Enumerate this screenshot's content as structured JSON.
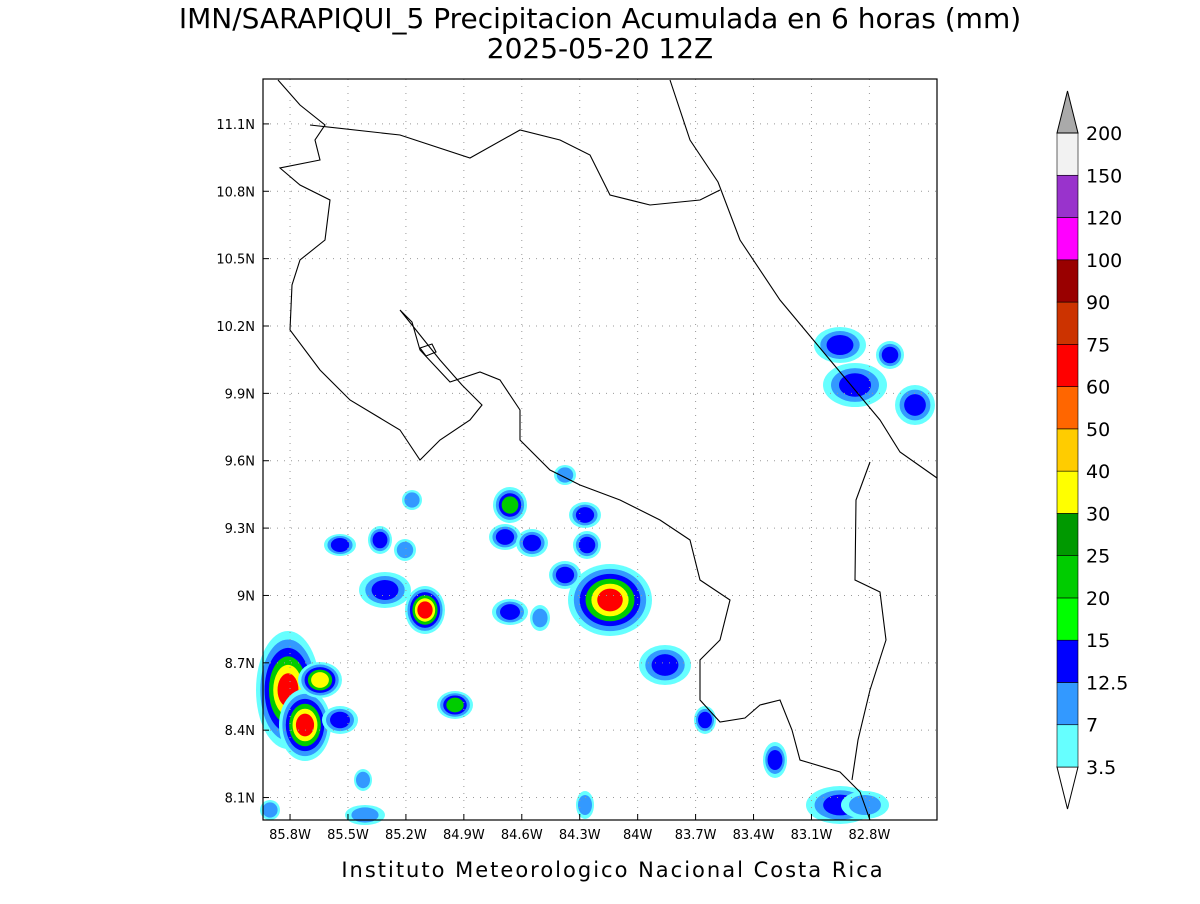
{
  "map": {
    "title": "IMN/SARAPIQUI_5 Precipitacion Acumulada en 6 horas (mm)",
    "subtitle": "2025-05-20 12Z",
    "footer": "Instituto Meteorologico Nacional Costa Rica",
    "xlim": [
      -85.94,
      -82.45
    ],
    "ylim": [
      8.0,
      11.3
    ],
    "xticks": [
      {
        "value": -85.8,
        "label": "85.8W"
      },
      {
        "value": -85.5,
        "label": "85.5W"
      },
      {
        "value": -85.2,
        "label": "85.2W"
      },
      {
        "value": -84.9,
        "label": "84.9W"
      },
      {
        "value": -84.6,
        "label": "84.6W"
      },
      {
        "value": -84.3,
        "label": "84.3W"
      },
      {
        "value": -84.0,
        "label": "84W"
      },
      {
        "value": -83.7,
        "label": "83.7W"
      },
      {
        "value": -83.4,
        "label": "83.4W"
      },
      {
        "value": -83.1,
        "label": "83.1W"
      },
      {
        "value": -82.8,
        "label": "82.8W"
      }
    ],
    "yticks": [
      {
        "value": 8.1,
        "label": "8.1N"
      },
      {
        "value": 8.4,
        "label": "8.4N"
      },
      {
        "value": 8.7,
        "label": "8.7N"
      },
      {
        "value": 9.0,
        "label": "9N"
      },
      {
        "value": 9.3,
        "label": "9.3N"
      },
      {
        "value": 9.6,
        "label": "9.6N"
      },
      {
        "value": 9.9,
        "label": "9.9N"
      },
      {
        "value": 10.2,
        "label": "10.2N"
      },
      {
        "value": 10.5,
        "label": "10.5N"
      },
      {
        "value": 10.8,
        "label": "10.8N"
      },
      {
        "value": 11.1,
        "label": "11.1N"
      }
    ],
    "grid": true,
    "levels": [
      3.5,
      7,
      12.5,
      15,
      20,
      25,
      30,
      40,
      50,
      60,
      75,
      90,
      100,
      120,
      150,
      200
    ],
    "colors": [
      "#ffffff",
      "#66ffff",
      "#3399ff",
      "#0000ff",
      "#00ff00",
      "#00cc00",
      "#009900",
      "#ffff00",
      "#ffcc00",
      "#ff6600",
      "#ff0000",
      "#cc3300",
      "#990000",
      "#ff00ff",
      "#9933cc",
      "#f2f2f2",
      "#aaaaaa"
    ]
  }
}
